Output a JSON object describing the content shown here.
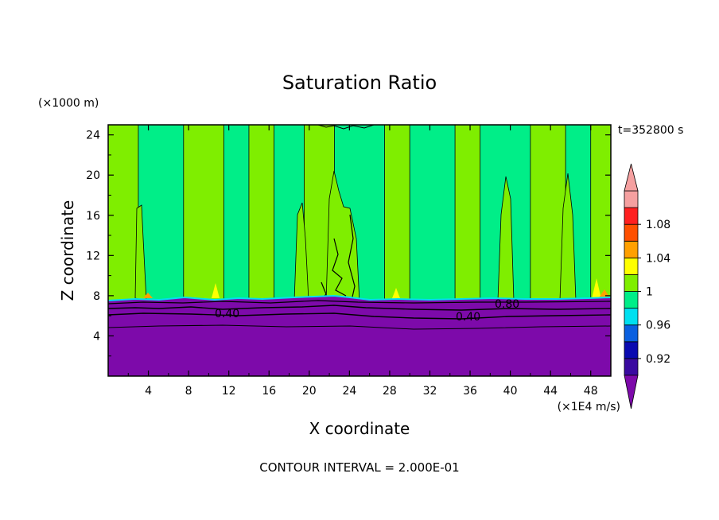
{
  "chart_data": {
    "type": "heatmap",
    "title": "Saturation Ratio",
    "xlabel": "X coordinate",
    "ylabel": "Z coordinate",
    "x_unit": "(×1E4 m/s)",
    "y_unit": "(×1000 m)",
    "xlim": [
      0,
      50
    ],
    "ylim": [
      0,
      25
    ],
    "x_ticks": [
      4,
      8,
      12,
      16,
      20,
      24,
      28,
      32,
      36,
      40,
      44,
      48
    ],
    "y_ticks": [
      4,
      8,
      12,
      16,
      20,
      24
    ],
    "time_label": "t=352800 s",
    "contour_interval": "CONTOUR INTERVAL = 2.000E-01",
    "contour_labels": [
      "0.40",
      "0.40",
      "0.80"
    ],
    "colorbar": {
      "levels": [
        0.92,
        0.94,
        0.96,
        0.98,
        1.0,
        1.02,
        1.04,
        1.06,
        1.08,
        1.1
      ],
      "tick_labels": [
        "0.92",
        "0.96",
        "1",
        "1.04",
        "1.08"
      ],
      "colors": [
        "#3a0aa0",
        "#0a0ab0",
        "#0a60e0",
        "#00e0f0",
        "#00ee88",
        "#7fee00",
        "#ffff00",
        "#ffa000",
        "#ff5000",
        "#ff2020",
        "#f5a0a0"
      ],
      "under_color": "#7d0aaa",
      "over_color": "#f5a0a0"
    },
    "colors": {
      "moist_region": "#00ee88",
      "saturated_bands": "#7fee00",
      "dry_region": "#7d0aaa"
    },
    "saturated_bands_x": [
      [
        0,
        3
      ],
      [
        7.5,
        11.5
      ],
      [
        14,
        16.5
      ],
      [
        19.5,
        22.5
      ],
      [
        27.5,
        30
      ],
      [
        34.5,
        37
      ],
      [
        42,
        45.5
      ],
      [
        48,
        50
      ]
    ],
    "dry_layer_top_z": 7.5
  }
}
